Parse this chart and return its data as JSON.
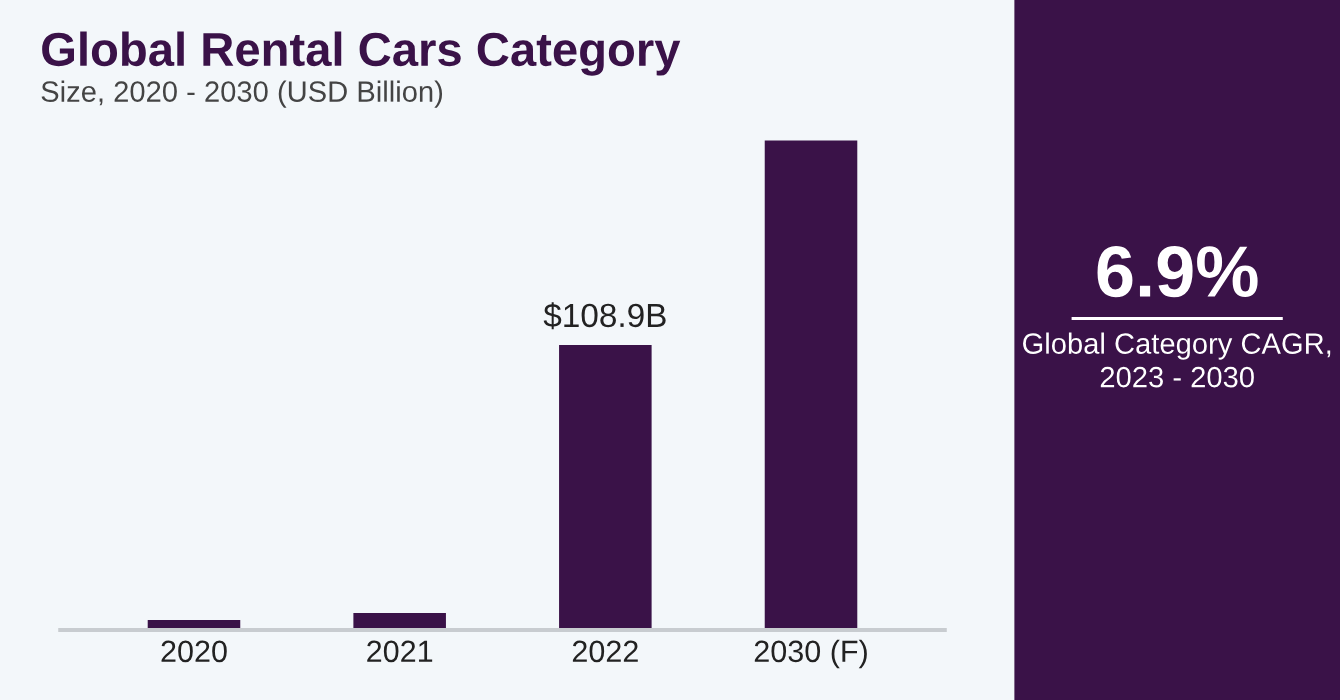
{
  "chart_data": [
    {
      "type": "bar",
      "title": "Global Rental Cars Category",
      "subtitle": "Size, 2020 - 2030 (USD Billion)",
      "categories": [
        "2020",
        "2021",
        "2022",
        "2030 (F)"
      ],
      "values": [
        3.8,
        6.5,
        108.9,
        187
      ],
      "value_labels": [
        null,
        null,
        "$108.9B",
        null
      ],
      "tick_labels": "x",
      "color": "#3a1248",
      "grid": false,
      "legend": false
    },
    {
      "type": "other",
      "title": "6.9%",
      "annotations": [
        "Global Category CAGR,\n2023 - 2030"
      ],
      "color": "#3a1248"
    }
  ]
}
